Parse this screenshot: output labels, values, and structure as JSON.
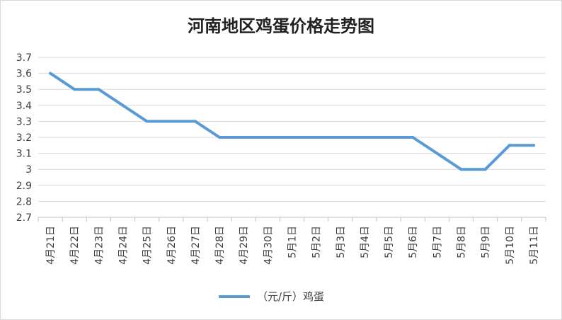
{
  "chart_data": {
    "type": "line",
    "title": "河南地区鸡蛋价格走势图",
    "categories": [
      "4月21日",
      "4月22日",
      "4月23日",
      "4月24日",
      "4月25日",
      "4月26日",
      "4月27日",
      "4月28日",
      "4月29日",
      "4月30日",
      "5月1日",
      "5月2日",
      "5月3日",
      "5月4日",
      "5月5日",
      "5月6日",
      "5月7日",
      "5月8日",
      "5月9日",
      "5月10日",
      "5月11日"
    ],
    "series": [
      {
        "name": "（元/斤）鸡蛋",
        "color": "#5b9bd5",
        "values": [
          3.6,
          3.5,
          3.5,
          3.4,
          3.3,
          3.3,
          3.3,
          3.2,
          3.2,
          3.2,
          3.2,
          3.2,
          3.2,
          3.2,
          3.2,
          3.2,
          3.1,
          3.0,
          3.0,
          3.15,
          3.15
        ]
      }
    ],
    "ylim": [
      2.7,
      3.7
    ],
    "yticks": [
      "2.7",
      "2.8",
      "2.9",
      "3",
      "3.1",
      "3.2",
      "3.3",
      "3.4",
      "3.5",
      "3.6",
      "3.7"
    ],
    "grid": true,
    "legend": "bottom"
  }
}
